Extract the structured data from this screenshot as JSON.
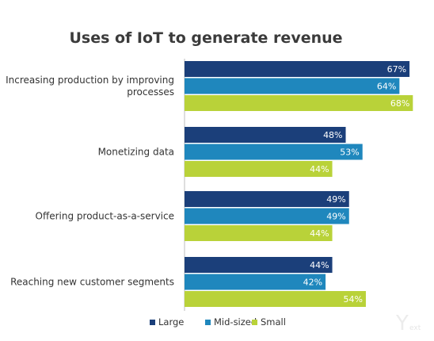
{
  "chart_data": {
    "type": "bar",
    "orientation": "horizontal",
    "title": "Uses of IoT to generate revenue",
    "categories": [
      [
        "Increasing production by improving",
        "processes"
      ],
      [
        "Monetizing data"
      ],
      [
        "Offering product-as-a-service"
      ],
      [
        "Reaching new customer segments"
      ]
    ],
    "series": [
      {
        "name": "Large",
        "color": "#1b3f7a",
        "values": [
          67,
          48,
          49,
          44
        ],
        "labels": [
          "67%",
          "48%",
          "49%",
          "44%"
        ]
      },
      {
        "name": "Mid-sized",
        "color": "#1f87bd",
        "values": [
          64,
          53,
          49,
          42
        ],
        "labels": [
          "64%",
          "53%",
          "49%",
          "42%"
        ]
      },
      {
        "name": "Small",
        "color": "#b9d239",
        "values": [
          68,
          44,
          44,
          54
        ],
        "labels": [
          "68%",
          "44%",
          "44%",
          "54%"
        ]
      }
    ],
    "xlim": [
      0,
      70
    ],
    "grid": false,
    "legend_position": "bottom"
  },
  "watermark": {
    "mark": "Y",
    "text": "ext"
  }
}
